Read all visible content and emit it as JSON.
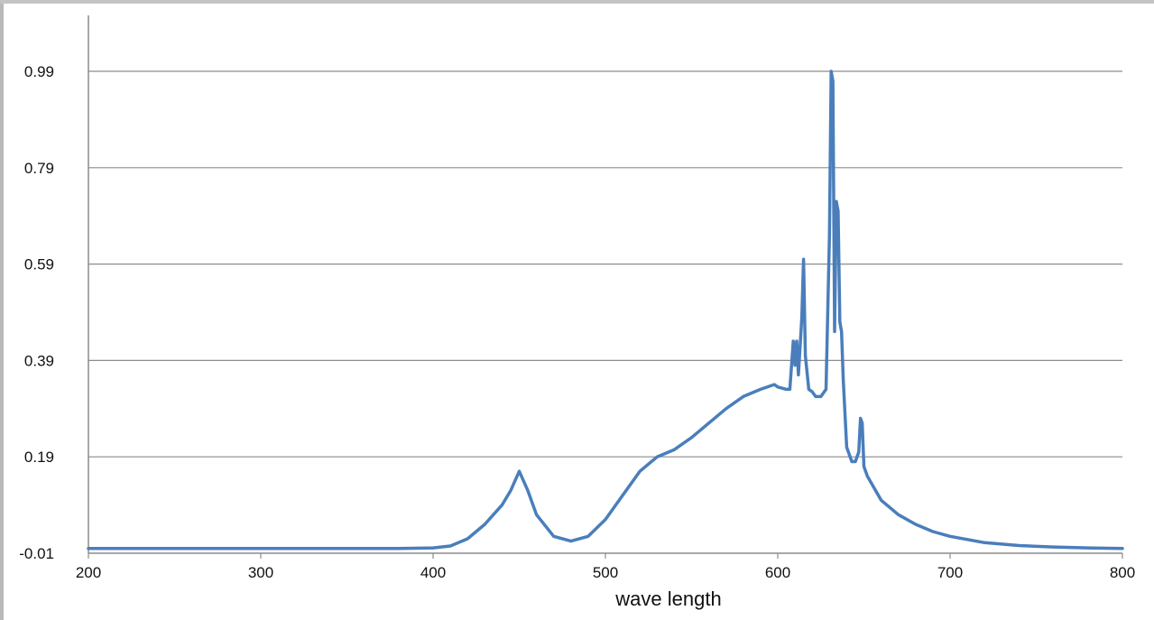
{
  "chart_data": {
    "type": "line",
    "title": "",
    "xlabel": "wave length",
    "ylabel": "",
    "xlim": [
      200,
      800
    ],
    "ylim": [
      -0.01,
      1.09
    ],
    "xticks": [
      "200",
      "300",
      "400",
      "500",
      "600",
      "700",
      "800"
    ],
    "yticks": [
      "-0.01",
      "0.19",
      "0.39",
      "0.59",
      "0.79",
      "0.99"
    ],
    "grid": true,
    "legend": "none",
    "line_color": "#4a7ebb",
    "series": [
      {
        "x": [
          200,
          300,
          380,
          400,
          410,
          420,
          430,
          440,
          445,
          450,
          455,
          460,
          470,
          480,
          490,
          500,
          510,
          520,
          530,
          540,
          550,
          560,
          570,
          580,
          590,
          598,
          600,
          605,
          607,
          609,
          610,
          611,
          612,
          614,
          615,
          616,
          618,
          620,
          622,
          625,
          628,
          630,
          631,
          632,
          633,
          634,
          635,
          636,
          637,
          638,
          640,
          643,
          645,
          647,
          648,
          649,
          650,
          652,
          660,
          670,
          680,
          690,
          700,
          720,
          740,
          760,
          780,
          800
        ],
        "y": [
          0.0,
          0.0,
          0.0,
          0.001,
          0.005,
          0.02,
          0.05,
          0.09,
          0.12,
          0.16,
          0.12,
          0.07,
          0.025,
          0.015,
          0.025,
          0.06,
          0.11,
          0.16,
          0.19,
          0.205,
          0.23,
          0.26,
          0.29,
          0.315,
          0.33,
          0.34,
          0.335,
          0.33,
          0.33,
          0.43,
          0.38,
          0.43,
          0.36,
          0.48,
          0.6,
          0.4,
          0.33,
          0.325,
          0.315,
          0.315,
          0.33,
          0.65,
          0.99,
          0.97,
          0.45,
          0.72,
          0.7,
          0.47,
          0.45,
          0.35,
          0.21,
          0.18,
          0.18,
          0.2,
          0.27,
          0.26,
          0.17,
          0.15,
          0.1,
          0.07,
          0.05,
          0.035,
          0.025,
          0.012,
          0.006,
          0.003,
          0.001,
          0.0
        ]
      }
    ]
  }
}
